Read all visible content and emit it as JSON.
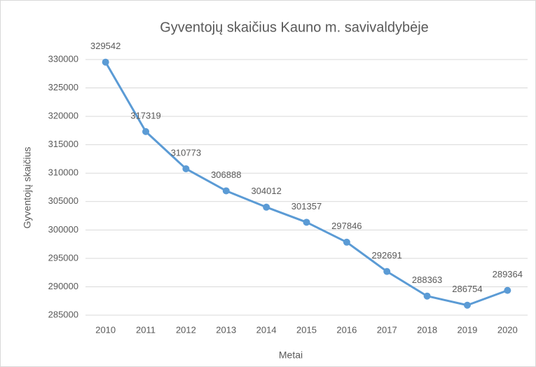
{
  "chart_data": {
    "type": "line",
    "title": "Gyventojų skaičius Kauno m. savivaldybėje",
    "x_label": "Metai",
    "y_label": "Gyventojų skaičius",
    "categories": [
      "2010",
      "2011",
      "2012",
      "2013",
      "2014",
      "2015",
      "2016",
      "2017",
      "2018",
      "2019",
      "2020"
    ],
    "series": [
      {
        "name": "Gyventojų skaičius",
        "color": "#5b9bd5",
        "values": [
          329542,
          317319,
          310773,
          306888,
          304012,
          301357,
          297846,
          292691,
          288363,
          286754,
          289364
        ]
      }
    ],
    "ylim": [
      285000,
      330000
    ],
    "yticks": [
      285000,
      290000,
      295000,
      300000,
      305000,
      310000,
      315000,
      320000,
      325000,
      330000
    ],
    "grid": true
  }
}
